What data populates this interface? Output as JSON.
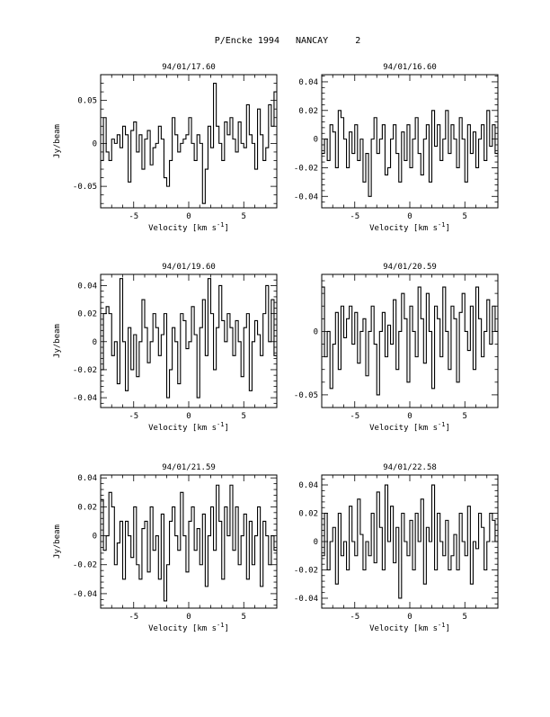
{
  "page_title": "P/Encke 1994   NANCAY     2",
  "chart_data": [
    {
      "type": "line",
      "title": "94/01/17.60",
      "xlabel": "Velocity [km s",
      "xlabel_sup": "-1",
      "xlabel_close": "]",
      "ylabel": "Jy/beam",
      "xlim": [
        -8,
        8
      ],
      "ylim": [
        -0.075,
        0.08
      ],
      "xticks": [
        -5,
        0,
        5
      ],
      "yticks": [
        -0.05,
        0,
        0.05
      ],
      "ytick_labels": [
        "-0.05",
        "0",
        "0.05"
      ],
      "x": [
        -8.0,
        -7.75,
        -7.5,
        -7.25,
        -7.0,
        -6.75,
        -6.5,
        -6.25,
        -6.0,
        -5.75,
        -5.5,
        -5.25,
        -5.0,
        -4.75,
        -4.5,
        -4.25,
        -4.0,
        -3.75,
        -3.5,
        -3.25,
        -3.0,
        -2.75,
        -2.5,
        -2.25,
        -2.0,
        -1.75,
        -1.5,
        -1.25,
        -1.0,
        -0.75,
        -0.5,
        -0.25,
        0.0,
        0.25,
        0.5,
        0.75,
        1.0,
        1.25,
        1.5,
        1.75,
        2.0,
        2.25,
        2.5,
        2.75,
        3.0,
        3.25,
        3.5,
        3.75,
        4.0,
        4.25,
        4.5,
        4.75,
        5.0,
        5.25,
        5.5,
        5.75,
        6.0,
        6.25,
        6.5,
        6.75,
        7.0,
        7.25,
        7.5,
        7.75
      ],
      "series": [
        {
          "values": [
            -0.02,
            0.03,
            -0.01,
            -0.02,
            0.005,
            0.0,
            0.01,
            -0.005,
            0.02,
            0.01,
            -0.045,
            0.015,
            0.025,
            -0.01,
            0.01,
            -0.03,
            0.005,
            0.015,
            -0.025,
            -0.005,
            0.0,
            0.02,
            0.005,
            -0.04,
            -0.05,
            -0.02,
            0.03,
            0.01,
            -0.01,
            0.0,
            0.005,
            0.01,
            0.03,
            0.0,
            -0.02,
            0.01,
            0.0,
            -0.07,
            -0.03,
            0.02,
            -0.005,
            0.07,
            0.02,
            0.0,
            -0.02,
            0.025,
            0.01,
            0.03,
            0.005,
            -0.01,
            0.025,
            0.0,
            -0.005,
            0.045,
            0.01,
            0.0,
            -0.03,
            0.04,
            0.01,
            -0.02,
            -0.005,
            0.045,
            0.02,
            0.06
          ]
        }
      ]
    },
    {
      "type": "line",
      "title": "94/01/16.60",
      "xlabel": "Velocity [km s",
      "xlabel_sup": "-1",
      "xlabel_close": "]",
      "ylabel": "",
      "xlim": [
        -8,
        8
      ],
      "ylim": [
        -0.048,
        0.045
      ],
      "xticks": [
        -5,
        0,
        5
      ],
      "yticks": [
        -0.04,
        -0.02,
        0,
        0.02,
        0.04
      ],
      "ytick_labels": [
        "-0.04",
        "-0.02",
        "0",
        "0.02",
        "0.04"
      ],
      "x": [
        -8.0,
        -7.75,
        -7.5,
        -7.25,
        -7.0,
        -6.75,
        -6.5,
        -6.25,
        -6.0,
        -5.75,
        -5.5,
        -5.25,
        -5.0,
        -4.75,
        -4.5,
        -4.25,
        -4.0,
        -3.75,
        -3.5,
        -3.25,
        -3.0,
        -2.75,
        -2.5,
        -2.25,
        -2.0,
        -1.75,
        -1.5,
        -1.25,
        -1.0,
        -0.75,
        -0.5,
        -0.25,
        0.0,
        0.25,
        0.5,
        0.75,
        1.0,
        1.25,
        1.5,
        1.75,
        2.0,
        2.25,
        2.5,
        2.75,
        3.0,
        3.25,
        3.5,
        3.75,
        4.0,
        4.25,
        4.5,
        4.75,
        5.0,
        5.25,
        5.5,
        5.75,
        6.0,
        6.25,
        6.5,
        6.75,
        7.0,
        7.25,
        7.5,
        7.75
      ],
      "series": [
        {
          "values": [
            -0.01,
            0.0,
            -0.015,
            0.01,
            0.005,
            -0.02,
            0.02,
            0.015,
            0.0,
            -0.02,
            0.005,
            -0.01,
            0.01,
            -0.015,
            0.0,
            -0.03,
            -0.01,
            -0.04,
            0.0,
            0.015,
            -0.01,
            0.0,
            0.01,
            -0.025,
            -0.02,
            0.0,
            0.01,
            -0.01,
            -0.03,
            0.005,
            -0.015,
            0.01,
            -0.02,
            0.0,
            0.015,
            -0.01,
            -0.025,
            0.0,
            0.01,
            -0.03,
            0.02,
            -0.005,
            0.01,
            -0.015,
            0.0,
            0.02,
            -0.01,
            0.01,
            0.0,
            -0.02,
            0.015,
            0.0,
            -0.03,
            0.01,
            -0.01,
            0.005,
            -0.02,
            0.0,
            0.01,
            -0.015,
            0.02,
            -0.005,
            0.01,
            -0.01
          ]
        }
      ]
    },
    {
      "type": "line",
      "title": "94/01/19.60",
      "xlabel": "Velocity [km s",
      "xlabel_sup": "-1",
      "xlabel_close": "]",
      "ylabel": "Jy/beam",
      "xlim": [
        -8,
        8
      ],
      "ylim": [
        -0.047,
        0.048
      ],
      "xticks": [
        -5,
        0,
        5
      ],
      "yticks": [
        -0.04,
        -0.02,
        0,
        0.02,
        0.04
      ],
      "ytick_labels": [
        "-0.04",
        "-0.02",
        "0",
        "0.02",
        "0.04"
      ],
      "x": [
        -8.0,
        -7.75,
        -7.5,
        -7.25,
        -7.0,
        -6.75,
        -6.5,
        -6.25,
        -6.0,
        -5.75,
        -5.5,
        -5.25,
        -5.0,
        -4.75,
        -4.5,
        -4.25,
        -4.0,
        -3.75,
        -3.5,
        -3.25,
        -3.0,
        -2.75,
        -2.5,
        -2.25,
        -2.0,
        -1.75,
        -1.5,
        -1.25,
        -1.0,
        -0.75,
        -0.5,
        -0.25,
        0.0,
        0.25,
        0.5,
        0.75,
        1.0,
        1.25,
        1.5,
        1.75,
        2.0,
        2.25,
        2.5,
        2.75,
        3.0,
        3.25,
        3.5,
        3.75,
        4.0,
        4.25,
        4.5,
        4.75,
        5.0,
        5.25,
        5.5,
        5.75,
        6.0,
        6.25,
        6.5,
        6.75,
        7.0,
        7.25,
        7.5,
        7.75
      ],
      "series": [
        {
          "values": [
            -0.02,
            0.02,
            0.025,
            0.02,
            -0.01,
            0.0,
            -0.03,
            0.045,
            0.0,
            -0.035,
            0.01,
            -0.02,
            0.005,
            -0.025,
            0.0,
            0.03,
            0.01,
            -0.015,
            0.0,
            0.02,
            0.01,
            -0.01,
            0.005,
            0.02,
            -0.04,
            -0.02,
            0.01,
            0.0,
            -0.03,
            0.02,
            0.015,
            -0.005,
            0.0,
            0.025,
            0.005,
            -0.04,
            0.01,
            0.03,
            -0.01,
            0.045,
            0.02,
            -0.02,
            0.01,
            0.04,
            0.015,
            0.0,
            0.02,
            0.01,
            -0.01,
            0.015,
            0.0,
            -0.025,
            0.01,
            0.02,
            -0.035,
            0.0,
            0.015,
            0.005,
            -0.01,
            0.02,
            0.04,
            0.0,
            0.03,
            -0.01
          ]
        }
      ]
    },
    {
      "type": "line",
      "title": "94/01/20.59",
      "xlabel": "Velocity [km s",
      "xlabel_sup": "-1",
      "xlabel_close": "]",
      "ylabel": "",
      "xlim": [
        -8,
        8
      ],
      "ylim": [
        -0.06,
        0.045
      ],
      "xticks": [
        -5,
        0,
        5
      ],
      "yticks": [
        -0.05,
        0
      ],
      "ytick_labels": [
        "-0.05",
        "0"
      ],
      "x": [
        -8.0,
        -7.75,
        -7.5,
        -7.25,
        -7.0,
        -6.75,
        -6.5,
        -6.25,
        -6.0,
        -5.75,
        -5.5,
        -5.25,
        -5.0,
        -4.75,
        -4.5,
        -4.25,
        -4.0,
        -3.75,
        -3.5,
        -3.25,
        -3.0,
        -2.75,
        -2.5,
        -2.25,
        -2.0,
        -1.75,
        -1.5,
        -1.25,
        -1.0,
        -0.75,
        -0.5,
        -0.25,
        0.0,
        0.25,
        0.5,
        0.75,
        1.0,
        1.25,
        1.5,
        1.75,
        2.0,
        2.25,
        2.5,
        2.75,
        3.0,
        3.25,
        3.5,
        3.75,
        4.0,
        4.25,
        4.5,
        4.75,
        5.0,
        5.25,
        5.5,
        5.75,
        6.0,
        6.25,
        6.5,
        6.75,
        7.0,
        7.25,
        7.5,
        7.75
      ],
      "series": [
        {
          "values": [
            0.035,
            -0.02,
            0.0,
            -0.045,
            -0.01,
            0.015,
            -0.03,
            0.02,
            -0.005,
            0.01,
            0.02,
            -0.01,
            0.015,
            -0.025,
            0.0,
            0.01,
            -0.035,
            0.0,
            0.02,
            -0.01,
            -0.05,
            0.0,
            0.015,
            -0.02,
            0.005,
            -0.01,
            0.025,
            -0.03,
            0.0,
            0.03,
            0.01,
            -0.04,
            0.02,
            0.0,
            -0.02,
            0.035,
            0.01,
            -0.025,
            0.03,
            0.0,
            -0.045,
            0.02,
            0.01,
            -0.02,
            0.035,
            0.0,
            -0.03,
            0.02,
            0.01,
            -0.04,
            0.015,
            0.03,
            0.0,
            -0.015,
            0.02,
            -0.03,
            0.035,
            0.01,
            -0.02,
            0.0,
            0.025,
            -0.01,
            0.02,
            0.0
          ]
        }
      ]
    },
    {
      "type": "line",
      "title": "94/01/21.59",
      "xlabel": "Velocity [km s",
      "xlabel_sup": "-1",
      "xlabel_close": "]",
      "ylabel": "Jy/beam",
      "xlim": [
        -8,
        8
      ],
      "ylim": [
        -0.05,
        0.042
      ],
      "xticks": [
        -5,
        0,
        5
      ],
      "yticks": [
        -0.04,
        -0.02,
        0,
        0.02,
        0.04
      ],
      "ytick_labels": [
        "-0.04",
        "-0.02",
        "0",
        "0.02",
        "0.04"
      ],
      "x": [
        -8.0,
        -7.75,
        -7.5,
        -7.25,
        -7.0,
        -6.75,
        -6.5,
        -6.25,
        -6.0,
        -5.75,
        -5.5,
        -5.25,
        -5.0,
        -4.75,
        -4.5,
        -4.25,
        -4.0,
        -3.75,
        -3.5,
        -3.25,
        -3.0,
        -2.75,
        -2.5,
        -2.25,
        -2.0,
        -1.75,
        -1.5,
        -1.25,
        -1.0,
        -0.75,
        -0.5,
        -0.25,
        0.0,
        0.25,
        0.5,
        0.75,
        1.0,
        1.25,
        1.5,
        1.75,
        2.0,
        2.25,
        2.5,
        2.75,
        3.0,
        3.25,
        3.5,
        3.75,
        4.0,
        4.25,
        4.5,
        4.75,
        5.0,
        5.25,
        5.5,
        5.75,
        6.0,
        6.25,
        6.5,
        6.75,
        7.0,
        7.25,
        7.5,
        7.75
      ],
      "series": [
        {
          "values": [
            0.025,
            -0.01,
            0.0,
            0.03,
            0.02,
            -0.02,
            -0.005,
            0.01,
            -0.03,
            0.01,
            0.0,
            -0.015,
            0.02,
            -0.02,
            -0.03,
            0.005,
            0.01,
            -0.025,
            0.02,
            -0.01,
            0.0,
            -0.03,
            0.015,
            -0.045,
            -0.02,
            0.01,
            0.02,
            0.0,
            -0.01,
            0.03,
            0.0,
            -0.025,
            0.01,
            0.02,
            -0.01,
            0.005,
            -0.02,
            0.015,
            -0.035,
            0.0,
            0.02,
            -0.01,
            0.035,
            0.01,
            -0.03,
            0.02,
            0.0,
            0.035,
            -0.01,
            0.02,
            -0.02,
            0.0,
            0.015,
            -0.03,
            0.01,
            -0.02,
            0.0,
            0.02,
            -0.035,
            0.01,
            0.0,
            -0.02,
            0.0,
            -0.01
          ]
        }
      ]
    },
    {
      "type": "line",
      "title": "94/01/22.58",
      "xlabel": "Velocity [km s",
      "xlabel_sup": "-1",
      "xlabel_close": "]",
      "ylabel": "",
      "xlim": [
        -8,
        8
      ],
      "ylim": [
        -0.047,
        0.047
      ],
      "xticks": [
        -5,
        0,
        5
      ],
      "yticks": [
        -0.04,
        -0.02,
        0,
        0.02,
        0.04
      ],
      "ytick_labels": [
        "-0.04",
        "-0.02",
        "0",
        "0.02",
        "0.04"
      ],
      "x": [
        -8.0,
        -7.75,
        -7.5,
        -7.25,
        -7.0,
        -6.75,
        -6.5,
        -6.25,
        -6.0,
        -5.75,
        -5.5,
        -5.25,
        -5.0,
        -4.75,
        -4.5,
        -4.25,
        -4.0,
        -3.75,
        -3.5,
        -3.25,
        -3.0,
        -2.75,
        -2.5,
        -2.25,
        -2.0,
        -1.75,
        -1.5,
        -1.25,
        -1.0,
        -0.75,
        -0.5,
        -0.25,
        0.0,
        0.25,
        0.5,
        0.75,
        1.0,
        1.25,
        1.5,
        1.75,
        2.0,
        2.25,
        2.5,
        2.75,
        3.0,
        3.25,
        3.5,
        3.75,
        4.0,
        4.25,
        4.5,
        4.75,
        5.0,
        5.25,
        5.5,
        5.75,
        6.0,
        6.25,
        6.5,
        6.75,
        7.0,
        7.25,
        7.5,
        7.75
      ],
      "series": [
        {
          "values": [
            -0.01,
            0.02,
            -0.02,
            0.0,
            0.01,
            -0.03,
            0.02,
            -0.01,
            0.0,
            -0.02,
            0.025,
            0.0,
            -0.01,
            0.03,
            0.005,
            -0.02,
            0.0,
            -0.01,
            0.02,
            -0.015,
            0.035,
            0.01,
            -0.02,
            0.04,
            0.0,
            0.025,
            -0.015,
            0.01,
            -0.04,
            0.02,
            0.0,
            -0.01,
            0.015,
            -0.02,
            0.02,
            0.0,
            0.03,
            -0.03,
            0.01,
            0.0,
            0.04,
            -0.02,
            0.02,
            0.0,
            -0.01,
            0.015,
            -0.02,
            -0.01,
            0.005,
            -0.02,
            0.02,
            0.0,
            -0.01,
            0.025,
            -0.03,
            0.0,
            -0.005,
            0.02,
            0.01,
            -0.02,
            0.0,
            0.02,
            0.015,
            0.0
          ]
        }
      ]
    }
  ]
}
